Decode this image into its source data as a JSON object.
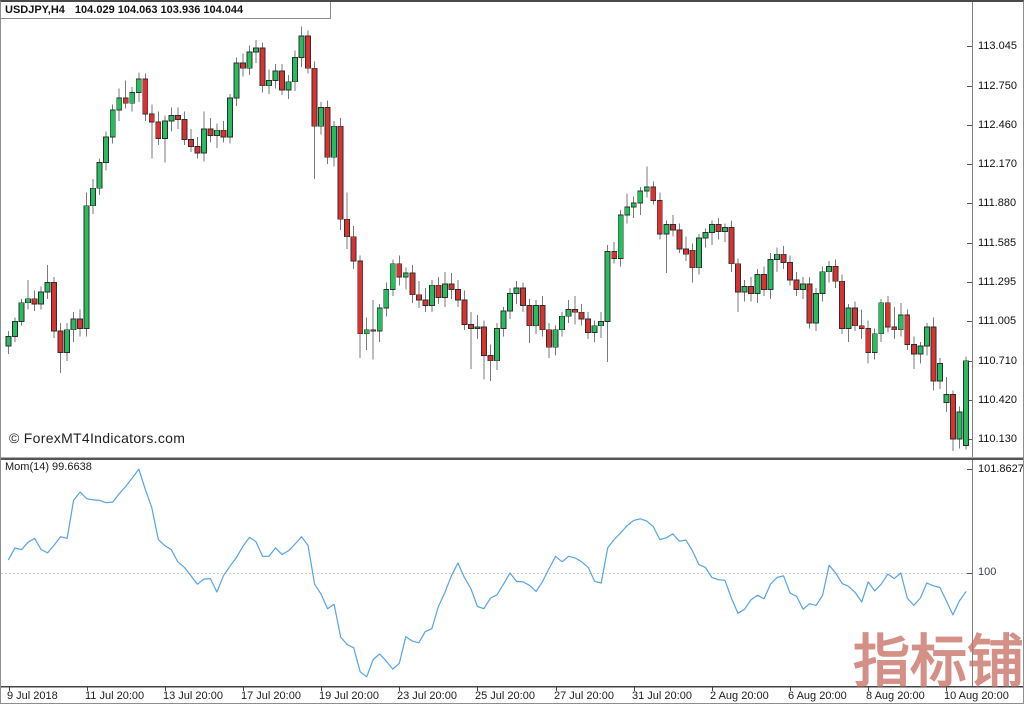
{
  "header": {
    "symbol_timeframe": "USDJPY,H4",
    "ohlc_text": "104.029 104.063 103.936 104.044"
  },
  "main_chart": {
    "watermark": "© ForexMT4Indicators.com"
  },
  "indicator": {
    "label_text": "Mom(14) 99.6638",
    "max_label": "101.8627",
    "level_label": "100"
  },
  "branding": {
    "cn_watermark": "指标铺"
  },
  "colors": {
    "bull": "#25bd5e",
    "bear": "#d93331",
    "candle_outline": "#2e2e2e",
    "wick": "#7a7a7a",
    "momentum_line": "#55a4e8",
    "level_dotted": "#cfcfcf",
    "axis_line": "#808080",
    "separator": "#555555",
    "text": "#1a1a1a"
  },
  "chart_data": [
    {
      "type": "candlestick",
      "title": "USDJPY,H4",
      "timeframe": "H4",
      "legend_position": "none",
      "grid": false,
      "y_axis_ticks": [
        113.045,
        112.75,
        112.46,
        112.17,
        111.88,
        111.585,
        111.295,
        111.005,
        110.71,
        110.42,
        110.13
      ],
      "x_tick_labels": [
        "9 Jul 2018",
        "11 Jul 20:00",
        "13 Jul 20:00",
        "17 Jul 20:00",
        "19 Jul 20:00",
        "23 Jul 20:00",
        "25 Jul 20:00",
        "27 Jul 20:00",
        "31 Jul 20:00",
        "2 Aug 20:00",
        "6 Aug 20:00",
        "8 Aug 20:00",
        "10 Aug 20:00"
      ],
      "bars_per_x_tick": 12,
      "candles": [
        [
          110.82,
          110.93,
          110.76,
          110.89
        ],
        [
          110.89,
          111.03,
          110.85,
          111.0
        ],
        [
          111.0,
          111.17,
          110.97,
          111.14
        ],
        [
          111.14,
          111.31,
          111.09,
          111.17
        ],
        [
          111.17,
          111.23,
          111.08,
          111.13
        ],
        [
          111.13,
          111.26,
          111.09,
          111.22
        ],
        [
          111.22,
          111.42,
          111.17,
          111.29
        ],
        [
          111.29,
          111.33,
          110.88,
          110.93
        ],
        [
          110.93,
          110.99,
          110.62,
          110.77
        ],
        [
          110.77,
          110.99,
          110.71,
          110.94
        ],
        [
          110.94,
          111.07,
          110.85,
          111.02
        ],
        [
          111.02,
          111.09,
          110.89,
          110.95
        ],
        [
          110.95,
          111.96,
          110.89,
          111.86
        ],
        [
          111.86,
          112.06,
          111.8,
          111.99
        ],
        [
          111.99,
          112.21,
          111.94,
          112.18
        ],
        [
          112.18,
          112.41,
          112.12,
          112.37
        ],
        [
          112.37,
          112.61,
          112.32,
          112.57
        ],
        [
          112.57,
          112.73,
          112.49,
          112.66
        ],
        [
          112.66,
          112.79,
          112.58,
          112.62
        ],
        [
          112.62,
          112.74,
          112.56,
          112.7
        ],
        [
          112.7,
          112.85,
          112.63,
          112.8
        ],
        [
          112.8,
          112.84,
          112.49,
          112.54
        ],
        [
          112.54,
          112.61,
          112.21,
          112.48
        ],
        [
          112.48,
          112.56,
          112.31,
          112.36
        ],
        [
          112.36,
          112.53,
          112.18,
          112.49
        ],
        [
          112.49,
          112.59,
          112.41,
          112.53
        ],
        [
          112.53,
          112.59,
          112.43,
          112.5
        ],
        [
          112.5,
          112.56,
          112.31,
          112.35
        ],
        [
          112.35,
          112.43,
          112.26,
          112.3
        ],
        [
          112.3,
          112.37,
          112.21,
          112.25
        ],
        [
          112.25,
          112.56,
          112.19,
          112.43
        ],
        [
          112.43,
          112.51,
          112.33,
          112.38
        ],
        [
          112.38,
          112.47,
          112.29,
          112.42
        ],
        [
          112.42,
          112.49,
          112.33,
          112.37
        ],
        [
          112.37,
          112.69,
          112.32,
          112.66
        ],
        [
          112.66,
          112.96,
          112.6,
          112.92
        ],
        [
          112.92,
          112.99,
          112.82,
          112.88
        ],
        [
          112.88,
          113.05,
          112.83,
          113.0
        ],
        [
          113.0,
          113.09,
          112.92,
          113.03
        ],
        [
          113.03,
          113.07,
          112.7,
          112.75
        ],
        [
          112.75,
          112.87,
          112.69,
          112.79
        ],
        [
          112.79,
          112.91,
          112.73,
          112.86
        ],
        [
          112.86,
          112.91,
          112.68,
          112.72
        ],
        [
          112.72,
          112.83,
          112.65,
          112.78
        ],
        [
          112.78,
          113.01,
          112.71,
          112.96
        ],
        [
          112.96,
          113.19,
          112.89,
          113.12
        ],
        [
          113.12,
          113.16,
          112.84,
          112.88
        ],
        [
          112.88,
          112.93,
          112.06,
          112.45
        ],
        [
          112.45,
          112.63,
          112.39,
          112.59
        ],
        [
          112.59,
          112.64,
          112.17,
          112.22
        ],
        [
          112.22,
          112.49,
          112.15,
          112.45
        ],
        [
          112.45,
          112.51,
          111.68,
          111.76
        ],
        [
          111.76,
          111.96,
          111.54,
          111.63
        ],
        [
          111.63,
          111.71,
          111.39,
          111.45
        ],
        [
          111.45,
          111.49,
          110.73,
          110.91
        ],
        [
          110.91,
          111.03,
          110.79,
          110.94
        ],
        [
          110.94,
          111.16,
          110.72,
          110.93
        ],
        [
          110.93,
          111.13,
          110.85,
          111.1
        ],
        [
          111.1,
          111.29,
          111.04,
          111.24
        ],
        [
          111.24,
          111.46,
          111.19,
          111.43
        ],
        [
          111.43,
          111.49,
          111.27,
          111.33
        ],
        [
          111.33,
          111.4,
          111.24,
          111.36
        ],
        [
          111.36,
          111.42,
          111.14,
          111.2
        ],
        [
          111.2,
          111.3,
          111.1,
          111.16
        ],
        [
          111.16,
          111.25,
          111.07,
          111.12
        ],
        [
          111.12,
          111.31,
          111.07,
          111.27
        ],
        [
          111.27,
          111.33,
          111.13,
          111.18
        ],
        [
          111.18,
          111.37,
          111.11,
          111.28
        ],
        [
          111.28,
          111.36,
          111.17,
          111.24
        ],
        [
          111.24,
          111.31,
          111.11,
          111.16
        ],
        [
          111.16,
          111.23,
          110.94,
          110.98
        ],
        [
          110.98,
          111.07,
          110.65,
          110.95
        ],
        [
          110.95,
          111.05,
          110.87,
          110.96
        ],
        [
          110.96,
          111.01,
          110.57,
          110.75
        ],
        [
          110.75,
          110.83,
          110.56,
          110.71
        ],
        [
          110.71,
          110.99,
          110.64,
          110.95
        ],
        [
          110.95,
          111.11,
          110.89,
          111.08
        ],
        [
          111.08,
          111.25,
          111.02,
          111.21
        ],
        [
          111.21,
          111.3,
          111.13,
          111.25
        ],
        [
          111.25,
          111.29,
          111.07,
          111.12
        ],
        [
          111.12,
          111.17,
          110.84,
          110.97
        ],
        [
          110.97,
          111.16,
          110.91,
          111.12
        ],
        [
          111.12,
          111.19,
          110.89,
          110.94
        ],
        [
          110.94,
          110.99,
          110.73,
          110.81
        ],
        [
          110.81,
          110.97,
          110.75,
          110.94
        ],
        [
          110.94,
          111.07,
          110.89,
          111.04
        ],
        [
          111.04,
          111.16,
          110.99,
          111.09
        ],
        [
          111.09,
          111.19,
          110.98,
          111.07
        ],
        [
          111.07,
          111.13,
          110.97,
          111.02
        ],
        [
          111.02,
          111.07,
          110.87,
          110.92
        ],
        [
          110.92,
          111.01,
          110.85,
          110.97
        ],
        [
          110.97,
          111.07,
          110.88,
          111.0
        ],
        [
          111.0,
          111.57,
          110.7,
          111.52
        ],
        [
          111.52,
          111.59,
          111.43,
          111.47
        ],
        [
          111.47,
          111.83,
          111.41,
          111.79
        ],
        [
          111.79,
          111.95,
          111.73,
          111.85
        ],
        [
          111.85,
          111.93,
          111.77,
          111.88
        ],
        [
          111.88,
          112.0,
          111.79,
          111.97
        ],
        [
          111.97,
          112.15,
          111.92,
          112.0
        ],
        [
          112.0,
          112.04,
          111.87,
          111.9
        ],
        [
          111.9,
          111.96,
          111.61,
          111.65
        ],
        [
          111.65,
          111.75,
          111.36,
          111.72
        ],
        [
          111.72,
          111.79,
          111.63,
          111.68
        ],
        [
          111.68,
          111.73,
          111.51,
          111.54
        ],
        [
          111.54,
          111.63,
          111.45,
          111.5
        ],
        [
          111.53,
          111.58,
          111.29,
          111.4
        ],
        [
          111.4,
          111.65,
          111.35,
          111.62
        ],
        [
          111.62,
          111.69,
          111.55,
          111.66
        ],
        [
          111.66,
          111.75,
          111.57,
          111.72
        ],
        [
          111.72,
          111.77,
          111.61,
          111.67
        ],
        [
          111.67,
          111.73,
          111.59,
          111.7
        ],
        [
          111.7,
          111.75,
          111.37,
          111.43
        ],
        [
          111.43,
          111.47,
          111.07,
          111.22
        ],
        [
          111.22,
          111.31,
          111.15,
          111.26
        ],
        [
          111.26,
          111.33,
          111.15,
          111.21
        ],
        [
          111.21,
          111.39,
          111.14,
          111.35
        ],
        [
          111.35,
          111.41,
          111.19,
          111.24
        ],
        [
          111.24,
          111.51,
          111.17,
          111.46
        ],
        [
          111.46,
          111.55,
          111.37,
          111.5
        ],
        [
          111.5,
          111.56,
          111.39,
          111.44
        ],
        [
          111.44,
          111.49,
          111.27,
          111.31
        ],
        [
          111.31,
          111.37,
          111.19,
          111.24
        ],
        [
          111.24,
          111.33,
          111.17,
          111.28
        ],
        [
          111.28,
          111.33,
          110.95,
          110.99
        ],
        [
          110.99,
          111.25,
          110.93,
          111.21
        ],
        [
          111.21,
          111.41,
          111.15,
          111.37
        ],
        [
          111.37,
          111.45,
          111.29,
          111.41
        ],
        [
          111.41,
          111.46,
          111.25,
          111.3
        ],
        [
          111.3,
          111.35,
          110.91,
          110.95
        ],
        [
          110.95,
          111.13,
          110.85,
          111.1
        ],
        [
          111.1,
          111.15,
          110.93,
          110.97
        ],
        [
          110.97,
          111.09,
          110.87,
          110.95
        ],
        [
          110.95,
          111.01,
          110.69,
          110.77
        ],
        [
          110.77,
          110.95,
          110.72,
          110.91
        ],
        [
          110.91,
          111.17,
          110.85,
          111.14
        ],
        [
          111.14,
          111.19,
          110.92,
          110.96
        ],
        [
          110.96,
          111.11,
          110.87,
          110.94
        ],
        [
          110.94,
          111.14,
          110.89,
          111.05
        ],
        [
          111.05,
          111.09,
          110.79,
          110.83
        ],
        [
          110.83,
          110.89,
          110.65,
          110.76
        ],
        [
          110.76,
          110.85,
          110.69,
          110.82
        ],
        [
          110.82,
          110.99,
          110.75,
          110.96
        ],
        [
          110.96,
          111.03,
          110.49,
          110.56
        ],
        [
          110.56,
          110.73,
          110.5,
          110.69
        ],
        [
          110.4,
          110.59,
          110.33,
          110.46
        ],
        [
          110.46,
          110.49,
          110.04,
          110.13
        ],
        [
          110.13,
          110.37,
          110.06,
          110.33
        ],
        [
          110.08,
          110.74,
          110.05,
          110.71
        ]
      ]
    },
    {
      "type": "line",
      "name": "Momentum(14)",
      "current_value": 99.6638,
      "max_value": 101.8627,
      "level": 100,
      "values": [
        100.24,
        100.45,
        100.42,
        100.55,
        100.62,
        100.42,
        100.36,
        100.5,
        100.65,
        100.62,
        101.3,
        101.45,
        101.33,
        101.31,
        101.3,
        101.26,
        101.27,
        101.42,
        101.55,
        101.7,
        101.86,
        101.5,
        101.17,
        100.6,
        100.49,
        100.42,
        100.2,
        100.1,
        99.95,
        99.8,
        99.89,
        99.9,
        99.66,
        99.95,
        100.12,
        100.28,
        100.48,
        100.64,
        100.56,
        100.3,
        100.3,
        100.45,
        100.33,
        100.4,
        100.52,
        100.65,
        100.49,
        99.8,
        99.62,
        99.36,
        99.44,
        98.85,
        98.72,
        98.66,
        98.23,
        98.14,
        98.45,
        98.55,
        98.42,
        98.28,
        98.38,
        98.86,
        98.78,
        98.75,
        98.95,
        99.0,
        99.4,
        99.65,
        99.95,
        100.18,
        99.92,
        99.72,
        99.4,
        99.36,
        99.55,
        99.61,
        99.8,
        100.0,
        99.85,
        99.84,
        99.78,
        99.67,
        99.85,
        100.08,
        100.3,
        100.2,
        100.3,
        100.27,
        100.2,
        100.1,
        99.85,
        99.82,
        100.45,
        100.6,
        100.72,
        100.85,
        100.94,
        100.97,
        100.93,
        100.83,
        100.6,
        100.63,
        100.7,
        100.57,
        100.59,
        100.4,
        100.15,
        100.1,
        99.92,
        99.88,
        99.87,
        99.55,
        99.28,
        99.35,
        99.52,
        99.6,
        99.54,
        99.8,
        99.92,
        99.95,
        99.64,
        99.58,
        99.35,
        99.45,
        99.42,
        99.6,
        100.14,
        100.0,
        99.81,
        99.76,
        99.65,
        99.48,
        99.84,
        99.68,
        99.8,
        99.98,
        99.9,
        100.0,
        99.55,
        99.42,
        99.55,
        99.82,
        99.77,
        99.74,
        99.5,
        99.25,
        99.5,
        99.6638
      ]
    }
  ]
}
